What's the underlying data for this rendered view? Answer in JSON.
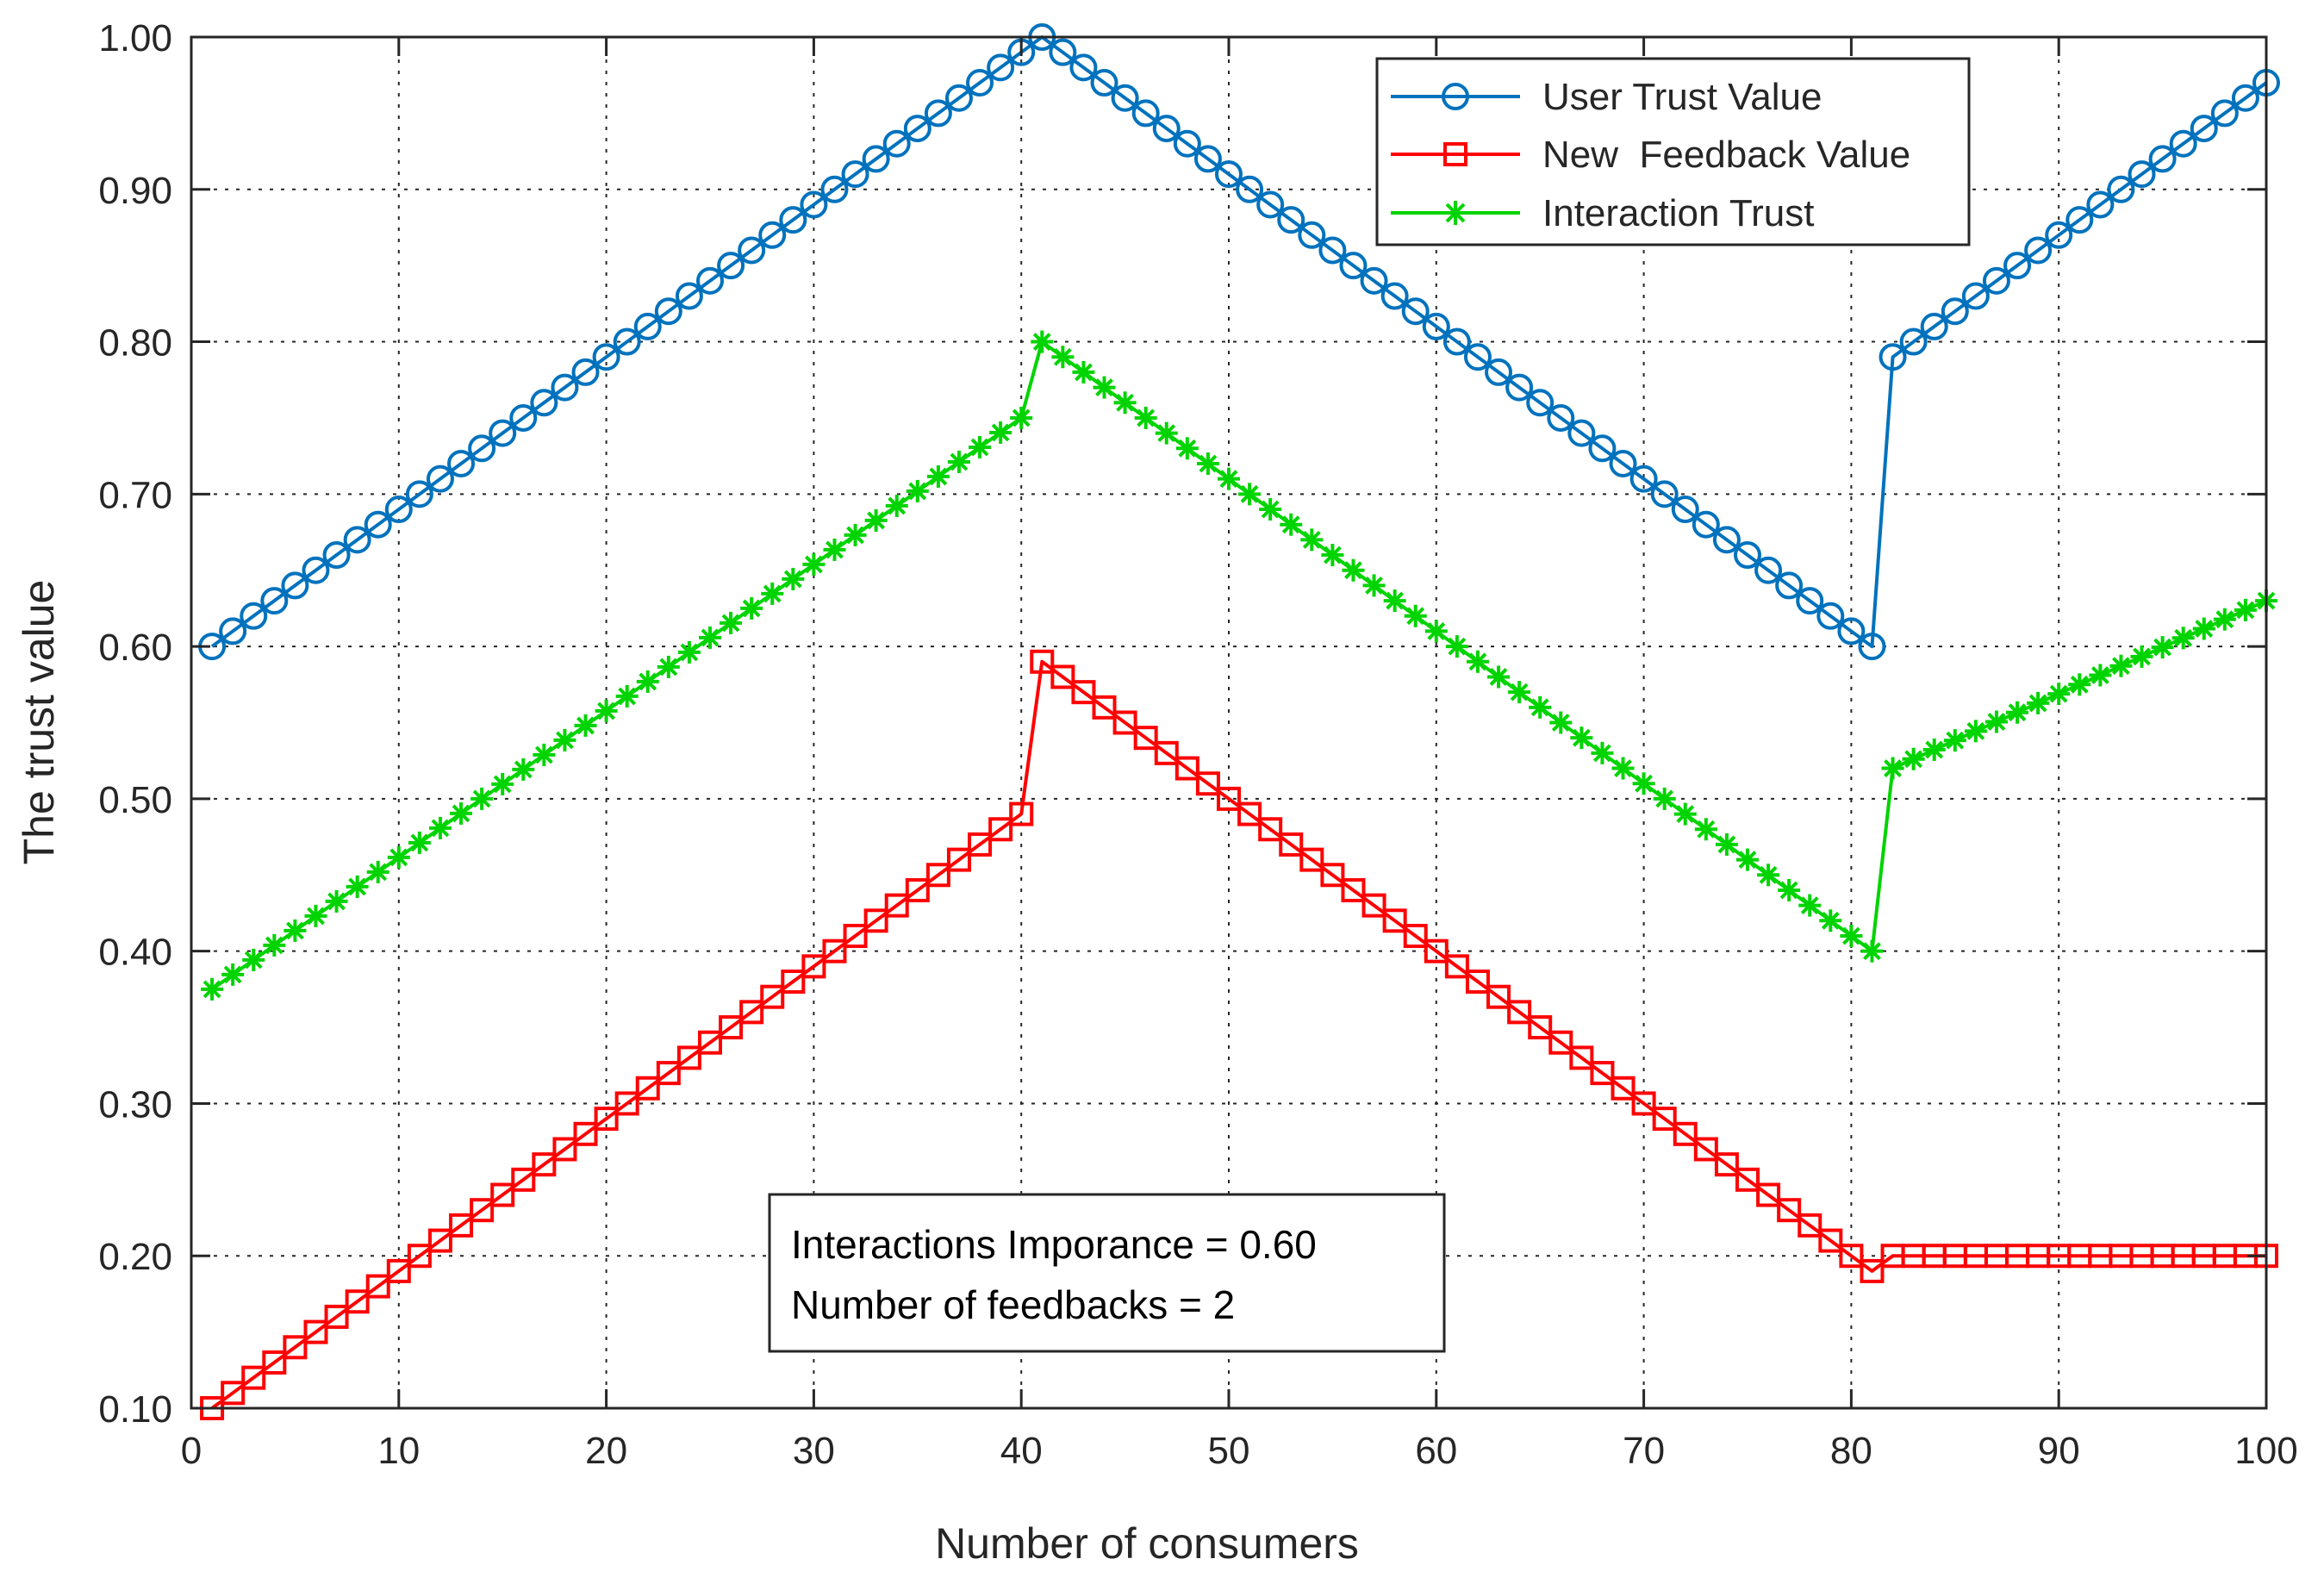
{
  "chart_data": {
    "type": "line",
    "title": "",
    "xlabel": "Number of consumers",
    "ylabel": "The trust value",
    "xlim": [
      0,
      100
    ],
    "ylim": [
      0.1,
      1.0
    ],
    "xticks": [
      0,
      10,
      20,
      30,
      40,
      50,
      60,
      70,
      80,
      90,
      100
    ],
    "yticks": [
      0.1,
      0.2,
      0.3,
      0.4,
      0.5,
      0.6,
      0.7,
      0.8,
      0.9,
      1.0
    ],
    "xtick_labels": [
      "0",
      "10",
      "20",
      "30",
      "40",
      "50",
      "60",
      "70",
      "80",
      "90",
      "100"
    ],
    "ytick_labels": [
      "0.10",
      "0.20",
      "0.30",
      "0.40",
      "0.50",
      "0.60",
      "0.70",
      "0.80",
      "0.90",
      "1.00"
    ],
    "grid": true,
    "legend_position": "top-right",
    "x_start": 1,
    "x_end": 100,
    "series": [
      {
        "name": "User Trust Value",
        "color": "#0072bd",
        "marker": "circle",
        "segments": [
          {
            "from": 1,
            "to": 41,
            "start": 0.6,
            "end": 1.0
          },
          {
            "from": 41,
            "to": 81,
            "start": 1.0,
            "end": 0.6
          },
          {
            "from": 82,
            "to": 100,
            "start": 0.79,
            "end": 0.97
          }
        ]
      },
      {
        "name": "New  Feedback Value",
        "color": "#ff0000",
        "marker": "square",
        "segments": [
          {
            "from": 1,
            "to": 40,
            "start": 0.1,
            "end": 0.49
          },
          {
            "from": 41,
            "to": 41,
            "start": 0.59,
            "end": 0.59
          },
          {
            "from": 42,
            "to": 80,
            "start": 0.58,
            "end": 0.2
          },
          {
            "from": 81,
            "to": 81,
            "start": 0.19,
            "end": 0.19
          },
          {
            "from": 82,
            "to": 100,
            "start": 0.2,
            "end": 0.2
          }
        ]
      },
      {
        "name": "Interaction Trust",
        "color": "#00d400",
        "marker": "asterisk",
        "segments": [
          {
            "from": 1,
            "to": 40,
            "start": 0.375,
            "end": 0.75
          },
          {
            "from": 41,
            "to": 81,
            "start": 0.8,
            "end": 0.4
          },
          {
            "from": 82,
            "to": 100,
            "start": 0.52,
            "end": 0.63
          }
        ]
      }
    ],
    "annotation": {
      "line1": "Interactions Imporance = 0.60",
      "line2": "Number of feedbacks = 2"
    }
  }
}
